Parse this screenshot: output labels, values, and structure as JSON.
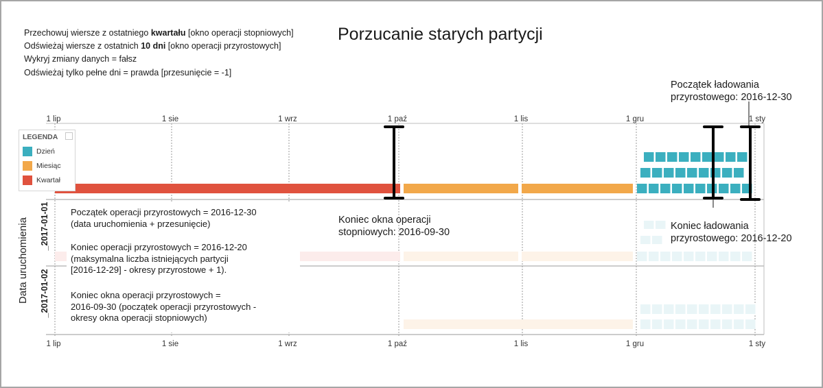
{
  "title": "Porzucanie starych partycji",
  "config_lines": [
    {
      "pre": "Przechowuj wiersze z ostatniego ",
      "bold": "kwartału",
      "post": " [okno operacji stopniowych]"
    },
    {
      "pre": "Odświeżaj wiersze z ostatnich ",
      "bold": "10 dni",
      "post": "  [okno operacji przyrostowych]"
    },
    {
      "pre": "Wykryj zmiany danych = fałsz",
      "bold": "",
      "post": ""
    },
    {
      "pre": "Odświeżaj tylko pełne dni = prawda [przesunięcie = -1]",
      "bold": "",
      "post": ""
    }
  ],
  "axis_labels": [
    "1 lip",
    "1 sie",
    "1 wrz",
    "1 paź",
    "1 lis",
    "1 gru",
    "1 sty"
  ],
  "y_axis_title": "Data uruchomienia",
  "row_labels": [
    "_2017-01-01",
    "_2017-01-02"
  ],
  "legend": {
    "title": "LEGENDA",
    "items": [
      {
        "label": "Dzień",
        "color": "#3bafbf"
      },
      {
        "label": "Miesiąc",
        "color": "#f2a84a"
      },
      {
        "label": "Kwartał",
        "color": "#e0523e"
      }
    ]
  },
  "annotations": {
    "incr_load_start": [
      "Początek ładowania",
      "przyrostowego: 2016-12-30"
    ],
    "rolling_end": [
      "Koniec okna operacji",
      "stopniowych: 2016-09-30"
    ],
    "incr_load_end": [
      "Koniec ładowania",
      "przyrostowego: 2016-12-20"
    ]
  },
  "explanations": [
    [
      "Początek operacji przyrostowych = 2016-12-30",
      "(data uruchomienia + przesunięcie)"
    ],
    [
      "Koniec operacji przyrostowych = 2016-12-20",
      "(maksymalna liczba istniejących partycji",
      "[2016-12-29] - okresy przyrostowe + 1)."
    ],
    [
      "Koniec okna operacji przyrostowych =",
      "2016-09-30 (początek operacji przyrostowych -",
      "okresy okna operacji stopniowych)"
    ]
  ],
  "colors": {
    "day": "#3bafbf",
    "month": "#f2a84a",
    "quarter": "#e0523e",
    "day_faded": "#e9f5f7",
    "month_faded": "#fdf3e8",
    "quarter_faded": "#fceceb",
    "marker": "#000000",
    "grid": "#9a9a9a"
  },
  "chart_data": {
    "type": "timeline",
    "x_range": [
      "2016-07-01",
      "2017-01-05"
    ],
    "rows": [
      {
        "name": "_2017-01-01",
        "quarter_partitions": [
          [
            "2016-07-01",
            "2016-09-30"
          ]
        ],
        "month_partitions": [
          [
            "2016-10-01",
            "2016-10-31"
          ],
          [
            "2016-11-01",
            "2016-11-30"
          ]
        ],
        "day_partitions_rows": 3
      },
      {
        "name": "_2017-01-02",
        "quarter_partitions": [
          [
            "2016-07-01",
            "2016-09-30"
          ]
        ],
        "month_partitions": [
          [
            "2016-10-01",
            "2016-10-31"
          ],
          [
            "2016-11-01",
            "2016-11-30"
          ]
        ],
        "day_partitions_rows": 3
      }
    ],
    "markers": [
      "2016-09-30",
      "2016-12-20",
      "2016-12-30"
    ]
  }
}
